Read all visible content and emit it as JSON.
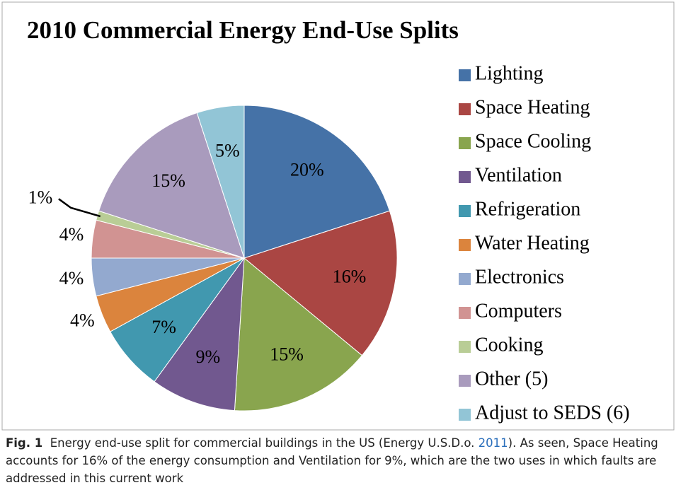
{
  "chart_data": {
    "type": "pie",
    "title": "2010 Commercial Energy End-Use Splits",
    "categories": [
      "Lighting",
      "Space Heating",
      "Space Cooling",
      "Ventilation",
      "Refrigeration",
      "Water Heating",
      "Electronics",
      "Computers",
      "Cooking",
      "Other (5)",
      "Adjust to SEDS (6)"
    ],
    "values": [
      20,
      16,
      15,
      9,
      7,
      4,
      4,
      4,
      1,
      15,
      5
    ],
    "value_labels": [
      "20%",
      "16%",
      "15%",
      "9%",
      "7%",
      "4%",
      "4%",
      "4%",
      "1%",
      "15%",
      "5%"
    ],
    "colors": [
      "#4572a7",
      "#aa4643",
      "#89a54e",
      "#71588f",
      "#4198af",
      "#db843d",
      "#93a9cf",
      "#d19392",
      "#b9cd96",
      "#a99bbd",
      "#92c5d6"
    ],
    "legend": "right"
  },
  "caption": {
    "label": "Fig. 1",
    "parts": [
      "Energy end-use split for commercial buildings in the US (Energy U.S.D.o. ",
      "2011",
      "). As seen, Space Heating accounts for 16% of the energy consumption and Ventilation for 9%, which are the two uses in which faults are addressed in this current work"
    ]
  }
}
